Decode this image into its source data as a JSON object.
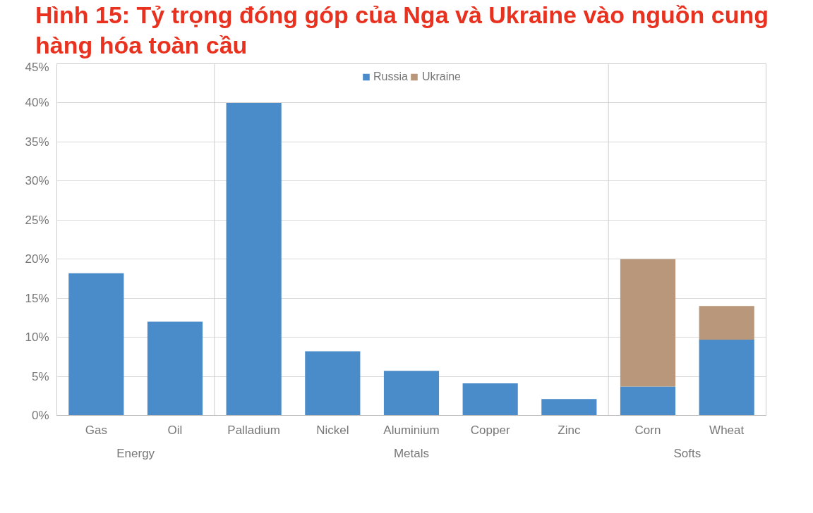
{
  "chart_data": {
    "type": "bar",
    "title": "Hình 15: Tỷ trọng đóng góp của Nga và Ukraine vào nguồn cung hàng hóa toàn cầu",
    "categories": [
      "Gas",
      "Oil",
      "Palladium",
      "Nickel",
      "Aluminium",
      "Copper",
      "Zinc",
      "Corn",
      "Wheat"
    ],
    "series": [
      {
        "name": "Russia",
        "color": "#4a8cc9",
        "values": [
          18.2,
          12,
          40,
          8.2,
          5.7,
          4.1,
          2.1,
          3.7,
          9.7
        ]
      },
      {
        "name": "Ukraine",
        "color": "#b8977a",
        "values": [
          null,
          null,
          null,
          null,
          null,
          null,
          null,
          16.3,
          4.3
        ]
      }
    ],
    "stacked": true,
    "annotations": [
      "Energy",
      "Metals",
      "Softs"
    ],
    "ylim": [
      0,
      45
    ],
    "yticks": [
      {
        "value": 0,
        "label": "0%"
      },
      {
        "value": 5,
        "label": "5%"
      },
      {
        "value": 10,
        "label": "10%"
      },
      {
        "value": 15,
        "label": "15%"
      },
      {
        "value": 20,
        "label": "20%"
      },
      {
        "value": 25,
        "label": "25%"
      },
      {
        "value": 30,
        "label": "30%"
      },
      {
        "value": 35,
        "label": "35%"
      },
      {
        "value": 40,
        "label": "40%"
      },
      {
        "value": 45,
        "label": "45%"
      }
    ],
    "grid": "y",
    "legend": "top"
  }
}
